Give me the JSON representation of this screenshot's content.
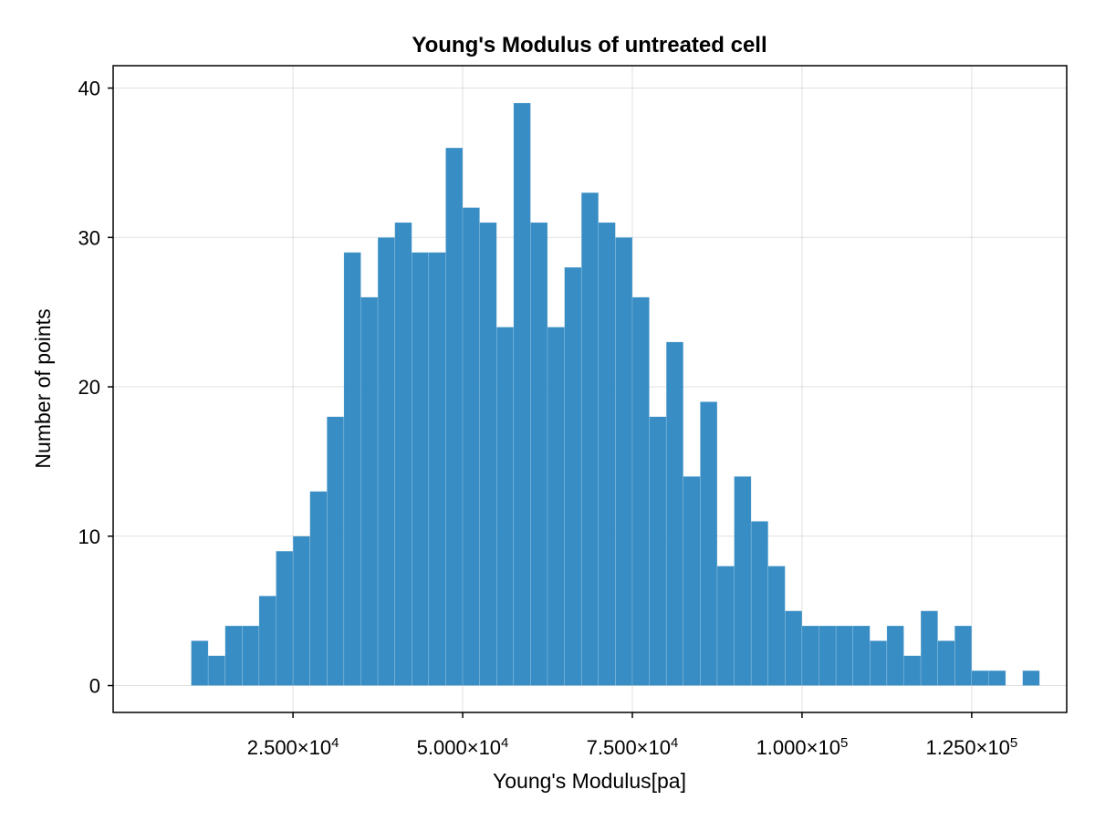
{
  "chart_data": {
    "type": "bar",
    "title": "Young's Modulus of untreated cell",
    "xlabel": "Young's Modulus[pa]",
    "ylabel": "Number of points",
    "bin_start": 10000,
    "bin_width": 2500,
    "values": [
      3,
      2,
      4,
      4,
      6,
      9,
      10,
      13,
      18,
      29,
      26,
      30,
      31,
      29,
      29,
      36,
      32,
      31,
      24,
      39,
      31,
      24,
      28,
      33,
      31,
      30,
      26,
      18,
      23,
      14,
      19,
      8,
      14,
      11,
      8,
      5,
      4,
      4,
      4,
      4,
      3,
      4,
      2,
      5,
      3,
      4,
      1,
      1,
      0,
      1
    ],
    "xlim": [
      -1500,
      139000
    ],
    "ylim": [
      -1.8,
      41.5
    ],
    "x_ticks": [
      {
        "value": 25000,
        "mantissa": "2.500×10",
        "exp": "4"
      },
      {
        "value": 50000,
        "mantissa": "5.000×10",
        "exp": "4"
      },
      {
        "value": 75000,
        "mantissa": "7.500×10",
        "exp": "4"
      },
      {
        "value": 100000,
        "mantissa": "1.000×10",
        "exp": "5"
      },
      {
        "value": 125000,
        "mantissa": "1.250×10",
        "exp": "5"
      }
    ],
    "y_ticks": [
      0,
      10,
      20,
      30,
      40
    ],
    "grid": true,
    "bar_color": "#2a86c0"
  }
}
